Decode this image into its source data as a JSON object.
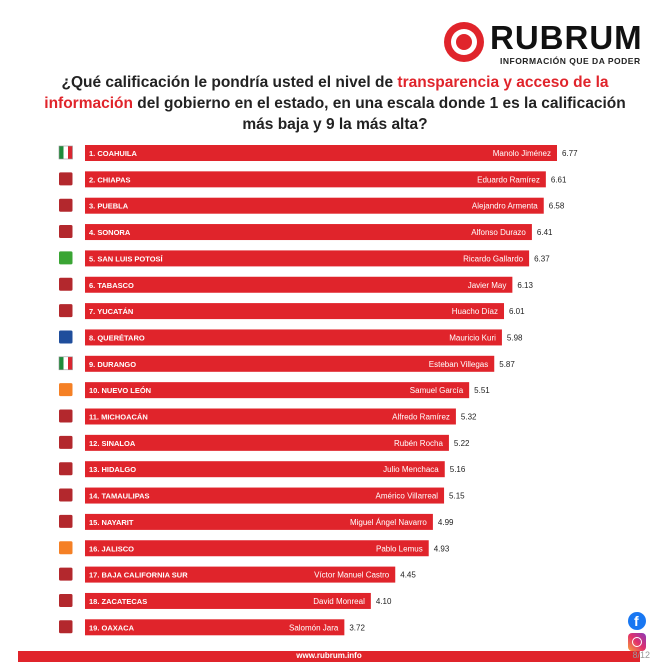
{
  "brand": {
    "name": "RUBRUM",
    "tagline": "INFORMACIÓN QUE DA PODER",
    "url": "www.rubrum.info"
  },
  "question": {
    "part1": "¿Qué calificación le pondría usted el nivel de ",
    "highlight1": "transparencia y acceso de la información",
    "part2": " del gobierno en el estado, en una escala donde 1 es la calificación más baja y 9 la más alta?"
  },
  "page_number": "8/12",
  "colors": {
    "bar": "#e0242b",
    "accent": "#e0242b"
  },
  "chart_data": {
    "type": "bar",
    "orientation": "horizontal",
    "xlim": [
      0,
      9
    ],
    "categories": [
      "1. COAHUILA",
      "2. CHIAPAS",
      "3. PUEBLA",
      "4. SONORA",
      "5. SAN LUIS POTOSÍ",
      "6. TABASCO",
      "7. YUCATÁN",
      "8. QUERÉTARO",
      "9. DURANGO",
      "10. NUEVO LEÓN",
      "11. MICHOACÁN",
      "12. SINALOA",
      "13. HIDALGO",
      "14. TAMAULIPAS",
      "15. NAYARIT",
      "16. JALISCO",
      "17. BAJA CALIFORNIA SUR",
      "18. ZACATECAS",
      "19. OAXACA"
    ],
    "governors": [
      "Manolo Jiménez",
      "Eduardo Ramírez",
      "Alejandro Armenta",
      "Alfonso Durazo",
      "Ricardo Gallardo",
      "Javier May",
      "Huacho Díaz",
      "Mauricio Kuri",
      "Esteban Villegas",
      "Samuel García",
      "Alfredo Ramírez",
      "Rubén Rocha",
      "Julio Menchaca",
      "Américo Villarreal",
      "Miguel Ángel Navarro",
      "Pablo Lemus",
      "Víctor Manuel Castro",
      "David Monreal",
      "Salomón Jara"
    ],
    "parties": [
      "pri-icon",
      "morena-icon",
      "morena-icon",
      "morena-icon",
      "pvem-icon",
      "morena-icon",
      "morena-icon",
      "pan-icon",
      "pri-icon",
      "mc-icon",
      "morena-icon",
      "morena-icon",
      "morena-icon",
      "morena-icon",
      "morena-icon",
      "mc-icon",
      "morena-icon",
      "morena-icon",
      "morena-icon"
    ],
    "values": [
      6.77,
      6.61,
      6.58,
      6.41,
      6.37,
      6.13,
      6.01,
      5.98,
      5.87,
      5.51,
      5.32,
      5.22,
      5.16,
      5.15,
      4.99,
      4.93,
      4.45,
      4.1,
      3.72
    ],
    "value_labels": [
      "6.77",
      "6.61",
      "6.58",
      "6.41",
      "6.37",
      "6.13",
      "6.01",
      "5.98",
      "5.87",
      "5.51",
      "5.32",
      "5.22",
      "5.16",
      "5.15",
      "4.99",
      "4.93",
      "4.45",
      "4.10",
      "3.72"
    ]
  }
}
